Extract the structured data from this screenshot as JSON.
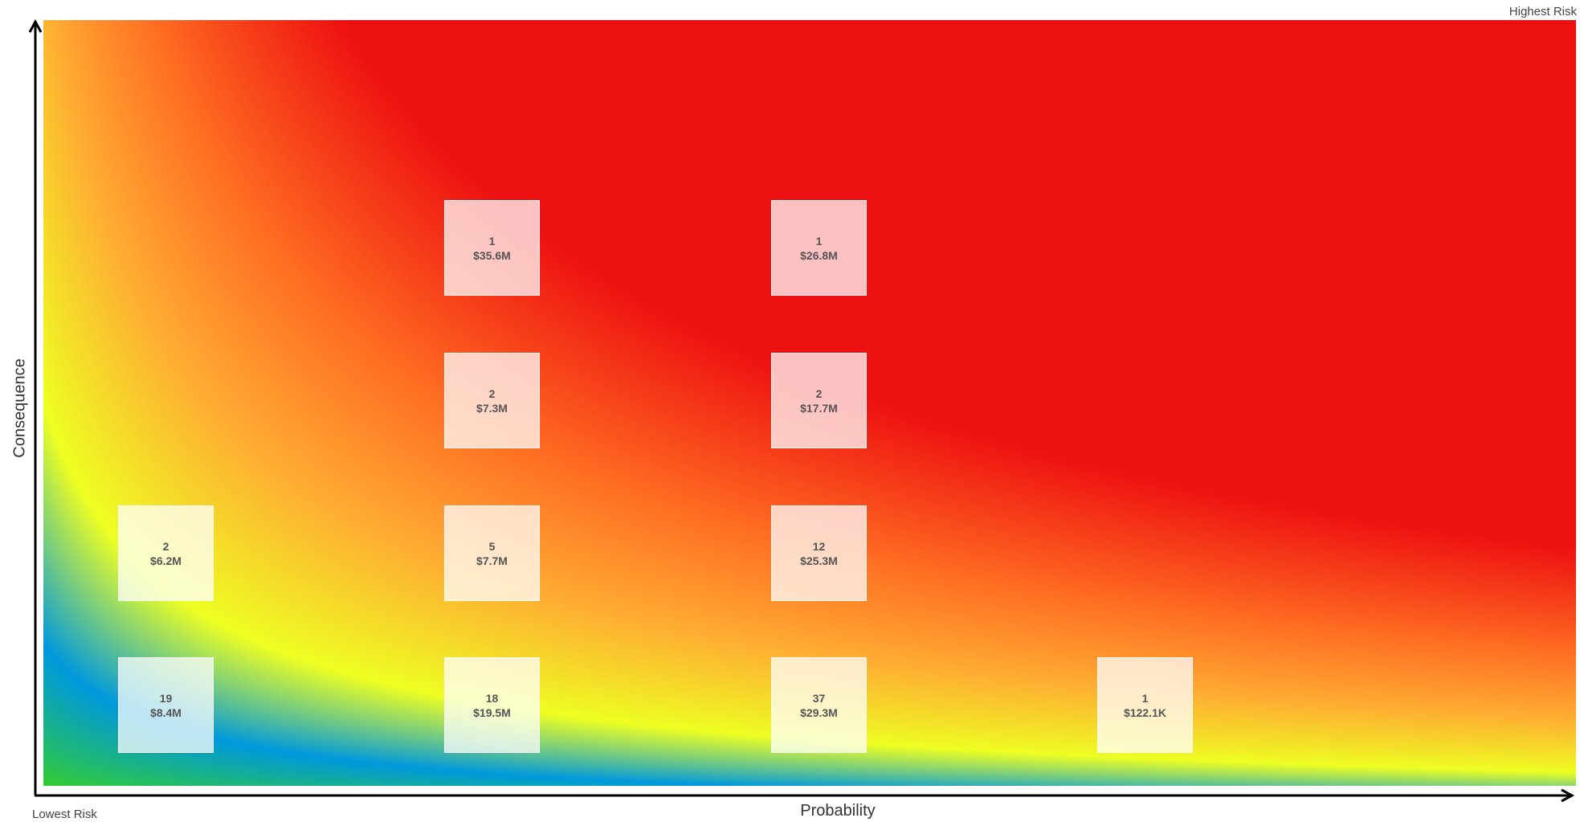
{
  "chart_data": {
    "type": "heatmap",
    "xlabel": "Probability",
    "ylabel": "Consequence",
    "corner_labels": {
      "top_right": "Highest Risk",
      "bottom_left": "Lowest Risk"
    },
    "gradient": {
      "direction": "low risk at bottom-left to high risk at top-right",
      "colors": [
        "#33cc33",
        "#0099dd",
        "#eeff22",
        "#ffaa33",
        "#ee1111"
      ]
    },
    "points": [
      {
        "probability": 1,
        "consequence": 4,
        "count": "1",
        "amount": "$35.6M"
      },
      {
        "probability": 2,
        "consequence": 4,
        "count": "1",
        "amount": "$26.8M"
      },
      {
        "probability": 1,
        "consequence": 3,
        "count": "2",
        "amount": "$7.3M"
      },
      {
        "probability": 2,
        "consequence": 3,
        "count": "2",
        "amount": "$17.7M"
      },
      {
        "probability": 0,
        "consequence": 2,
        "count": "2",
        "amount": "$6.2M"
      },
      {
        "probability": 1,
        "consequence": 2,
        "count": "5",
        "amount": "$7.7M"
      },
      {
        "probability": 2,
        "consequence": 2,
        "count": "12",
        "amount": "$25.3M"
      },
      {
        "probability": 0,
        "consequence": 1,
        "count": "19",
        "amount": "$8.4M"
      },
      {
        "probability": 1,
        "consequence": 1,
        "count": "18",
        "amount": "$19.5M"
      },
      {
        "probability": 2,
        "consequence": 1,
        "count": "37",
        "amount": "$29.3M"
      },
      {
        "probability": 3,
        "consequence": 1,
        "count": "1",
        "amount": "$122.1K"
      }
    ]
  }
}
